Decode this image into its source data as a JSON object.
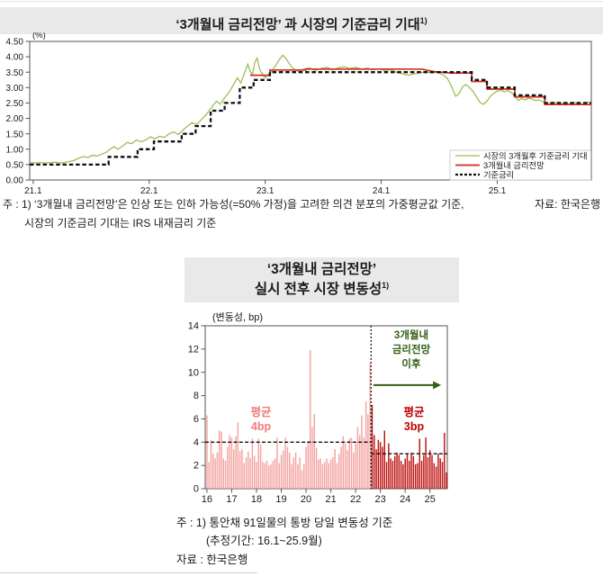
{
  "page": {
    "top_header": {
      "title": "‘3개월내 금리전망’ 과 시장의 기준금리 기대",
      "sup": "1)"
    },
    "top_footnote": {
      "line1": "주 : 1) ‘3개월내 금리전망’은 인상 또는 인하 가능성(=50% 가정)을 고려한 의견 분포의 가중평균값 기준,",
      "line2": "시장의 기준금리 기대는 IRS 내재금리 기준",
      "source": "자료: 한국은행"
    },
    "bottom_header": {
      "title_line1": "‘3개월내 금리전망’",
      "title_line2": "실시 전후 시장 변동성",
      "sup": "1)"
    },
    "bottom_footnote": {
      "line1": "주 : 1) 통안채 91일물의 통방 당일 변동성 기준",
      "line2": "(추정기간: 16.1~25.9월)",
      "source": "자료 : 한국은행"
    }
  },
  "chart_data": [
    {
      "type": "line",
      "title": "‘3개월내 금리전망’ 과 시장의 기준금리 기대1)",
      "unit_label": "(%)",
      "xlim": [
        20.97,
        25.81
      ],
      "ylim": [
        0,
        4.5
      ],
      "grid": false,
      "legend_position": "bottom-right",
      "y_tick_values": [
        0,
        0.5,
        1.0,
        1.5,
        2.0,
        2.5,
        3.0,
        3.5,
        4.0,
        4.5
      ],
      "y_tick_labels": [
        "0.00",
        "0.50",
        "1.00",
        "1.50",
        "2.00",
        "2.50",
        "3.00",
        "3.50",
        "4.00",
        "4.50"
      ],
      "x_tick_values": [
        21,
        22,
        23,
        24,
        25
      ],
      "x_tick_labels": [
        "21.1",
        "22.1",
        "23.1",
        "24.1",
        "25.1"
      ],
      "series": [
        {
          "name": "시장의 3개월후 기준금리 기대",
          "color": "#9cbe57",
          "dash": null,
          "width": 1.3,
          "points": [
            [
              20.97,
              0.56
            ],
            [
              21.02,
              0.55
            ],
            [
              21.06,
              0.57
            ],
            [
              21.1,
              0.55
            ],
            [
              21.15,
              0.56
            ],
            [
              21.19,
              0.58
            ],
            [
              21.23,
              0.55
            ],
            [
              21.27,
              0.57
            ],
            [
              21.31,
              0.6
            ],
            [
              21.35,
              0.63
            ],
            [
              21.39,
              0.7
            ],
            [
              21.43,
              0.76
            ],
            [
              21.47,
              0.73
            ],
            [
              21.51,
              0.8
            ],
            [
              21.55,
              0.78
            ],
            [
              21.59,
              0.84
            ],
            [
              21.63,
              0.9
            ],
            [
              21.67,
              1.02
            ],
            [
              21.7,
              1.08
            ],
            [
              21.73,
              1.0
            ],
            [
              21.77,
              1.1
            ],
            [
              21.81,
              1.22
            ],
            [
              21.85,
              1.18
            ],
            [
              21.89,
              1.3
            ],
            [
              21.93,
              1.24
            ],
            [
              21.97,
              1.3
            ],
            [
              22.01,
              1.4
            ],
            [
              22.05,
              1.34
            ],
            [
              22.09,
              1.42
            ],
            [
              22.13,
              1.38
            ],
            [
              22.17,
              1.5
            ],
            [
              22.21,
              1.56
            ],
            [
              22.25,
              1.48
            ],
            [
              22.29,
              1.62
            ],
            [
              22.33,
              1.75
            ],
            [
              22.37,
              1.86
            ],
            [
              22.41,
              1.8
            ],
            [
              22.45,
              1.96
            ],
            [
              22.49,
              2.12
            ],
            [
              22.52,
              2.26
            ],
            [
              22.55,
              2.42
            ],
            [
              22.58,
              2.56
            ],
            [
              22.61,
              2.46
            ],
            [
              22.64,
              2.62
            ],
            [
              22.67,
              2.76
            ],
            [
              22.7,
              2.92
            ],
            [
              22.73,
              3.12
            ],
            [
              22.76,
              3.32
            ],
            [
              22.79,
              3.15
            ],
            [
              22.82,
              3.46
            ],
            [
              22.85,
              3.76
            ],
            [
              22.87,
              3.52
            ],
            [
              22.89,
              3.42
            ],
            [
              22.91,
              3.82
            ],
            [
              22.93,
              3.96
            ],
            [
              22.95,
              3.62
            ],
            [
              22.97,
              3.46
            ],
            [
              23.0,
              3.32
            ],
            [
              23.03,
              3.42
            ],
            [
              23.06,
              3.56
            ],
            [
              23.09,
              3.72
            ],
            [
              23.12,
              3.9
            ],
            [
              23.15,
              4.05
            ],
            [
              23.18,
              3.94
            ],
            [
              23.21,
              3.76
            ],
            [
              23.24,
              3.62
            ],
            [
              23.28,
              3.54
            ],
            [
              23.33,
              3.6
            ],
            [
              23.38,
              3.64
            ],
            [
              23.43,
              3.56
            ],
            [
              23.48,
              3.62
            ],
            [
              23.53,
              3.66
            ],
            [
              23.58,
              3.58
            ],
            [
              23.63,
              3.64
            ],
            [
              23.68,
              3.68
            ],
            [
              23.73,
              3.62
            ],
            [
              23.78,
              3.66
            ],
            [
              23.83,
              3.6
            ],
            [
              23.88,
              3.63
            ],
            [
              23.93,
              3.58
            ],
            [
              23.98,
              3.61
            ],
            [
              24.03,
              3.56
            ],
            [
              24.08,
              3.58
            ],
            [
              24.13,
              3.5
            ],
            [
              24.18,
              3.45
            ],
            [
              24.23,
              3.4
            ],
            [
              24.28,
              3.44
            ],
            [
              24.33,
              3.48
            ],
            [
              24.38,
              3.5
            ],
            [
              24.43,
              3.48
            ],
            [
              24.48,
              3.5
            ],
            [
              24.53,
              3.42
            ],
            [
              24.57,
              3.3
            ],
            [
              24.61,
              3.0
            ],
            [
              24.64,
              2.72
            ],
            [
              24.67,
              2.8
            ],
            [
              24.7,
              3.02
            ],
            [
              24.73,
              3.1
            ],
            [
              24.76,
              3.0
            ],
            [
              24.79,
              2.88
            ],
            [
              24.82,
              2.7
            ],
            [
              24.85,
              2.52
            ],
            [
              24.88,
              2.46
            ],
            [
              24.91,
              2.55
            ],
            [
              24.94,
              2.72
            ],
            [
              24.97,
              2.82
            ],
            [
              25.0,
              2.88
            ],
            [
              25.03,
              2.92
            ],
            [
              25.06,
              2.86
            ],
            [
              25.09,
              2.9
            ],
            [
              25.12,
              2.84
            ],
            [
              25.15,
              2.72
            ],
            [
              25.18,
              2.58
            ],
            [
              25.21,
              2.65
            ],
            [
              25.24,
              2.6
            ],
            [
              25.27,
              2.66
            ],
            [
              25.3,
              2.62
            ],
            [
              25.33,
              2.58
            ],
            [
              25.36,
              2.6
            ],
            [
              25.39,
              2.55
            ],
            [
              25.42,
              2.5
            ],
            [
              25.46,
              2.47
            ],
            [
              25.5,
              2.52
            ],
            [
              25.54,
              2.46
            ],
            [
              25.58,
              2.5
            ],
            [
              25.62,
              2.47
            ],
            [
              25.66,
              2.52
            ],
            [
              25.7,
              2.48
            ],
            [
              25.74,
              2.46
            ],
            [
              25.78,
              2.53
            ],
            [
              25.81,
              2.5
            ]
          ]
        },
        {
          "name": "3개월내 금리전망",
          "color": "#cf2e21",
          "dash": null,
          "width": 1.7,
          "points": [
            [
              22.87,
              3.4
            ],
            [
              23.04,
              3.4
            ],
            [
              23.04,
              3.57
            ],
            [
              23.35,
              3.57
            ],
            [
              23.35,
              3.6
            ],
            [
              24.35,
              3.6
            ],
            [
              24.45,
              3.52
            ],
            [
              24.6,
              3.47
            ],
            [
              24.78,
              3.47
            ],
            [
              24.78,
              3.2
            ],
            [
              24.91,
              3.2
            ],
            [
              24.91,
              2.95
            ],
            [
              25.15,
              2.95
            ],
            [
              25.15,
              2.7
            ],
            [
              25.41,
              2.7
            ],
            [
              25.41,
              2.45
            ],
            [
              25.81,
              2.45
            ]
          ]
        },
        {
          "name": "기준금리",
          "color": "#111111",
          "dash": "4.5,2.8",
          "width": 2.3,
          "points": [
            [
              20.97,
              0.5
            ],
            [
              21.65,
              0.5
            ],
            [
              21.65,
              0.75
            ],
            [
              21.9,
              0.75
            ],
            [
              21.9,
              1.0
            ],
            [
              22.04,
              1.0
            ],
            [
              22.04,
              1.25
            ],
            [
              22.28,
              1.25
            ],
            [
              22.28,
              1.5
            ],
            [
              22.4,
              1.5
            ],
            [
              22.4,
              1.75
            ],
            [
              22.53,
              1.75
            ],
            [
              22.53,
              2.25
            ],
            [
              22.65,
              2.25
            ],
            [
              22.65,
              2.5
            ],
            [
              22.78,
              2.5
            ],
            [
              22.78,
              3.0
            ],
            [
              22.9,
              3.0
            ],
            [
              22.9,
              3.25
            ],
            [
              23.04,
              3.25
            ],
            [
              23.04,
              3.5
            ],
            [
              24.78,
              3.5
            ],
            [
              24.78,
              3.25
            ],
            [
              24.91,
              3.25
            ],
            [
              24.91,
              3.0
            ],
            [
              25.15,
              3.0
            ],
            [
              25.15,
              2.75
            ],
            [
              25.41,
              2.75
            ],
            [
              25.41,
              2.5
            ],
            [
              25.81,
              2.5
            ]
          ]
        }
      ]
    },
    {
      "type": "bar",
      "title": "‘3개월내 금리전망’ 실시 전후 시장 변동성1)",
      "unit_label": "(변동성,  bp)",
      "xlim": [
        15.93,
        25.7
      ],
      "ylim": [
        0,
        14
      ],
      "grid": false,
      "y_tick_values": [
        0,
        2,
        4,
        6,
        8,
        10,
        12,
        14
      ],
      "y_tick_labels": [
        "0",
        "2",
        "4",
        "6",
        "8",
        "10",
        "12",
        "14"
      ],
      "x_tick_values": [
        16,
        17,
        18,
        19,
        20,
        21,
        22,
        23,
        24,
        25
      ],
      "x_tick_labels": [
        "16",
        "17",
        "18",
        "19",
        "20",
        "21",
        "22",
        "23",
        "24",
        "25"
      ],
      "bar_start_x": 16.0,
      "bar_interval_years": 0.08333,
      "divider_index": 80,
      "divider_x": 22.625,
      "color_before": "#f4a3a1",
      "color_after": "#bf1212",
      "values": [
        6.3,
        2.3,
        4.2,
        3.0,
        2.6,
        3.1,
        5.0,
        4.9,
        2.6,
        2.4,
        3.6,
        4.6,
        4.4,
        3.4,
        4.5,
        5.7,
        3.2,
        3.4,
        2.2,
        2.7,
        3.2,
        2.6,
        4.3,
        2.8,
        2.3,
        4.3,
        3.8,
        2.3,
        2.2,
        2.4,
        2.0,
        2.1,
        2.4,
        2.6,
        4.4,
        2.2,
        2.9,
        3.3,
        4.4,
        3.6,
        3.1,
        2.1,
        2.7,
        3.1,
        2.1,
        2.7,
        1.6,
        2.1,
        3.6,
        4.1,
        11.9,
        5.3,
        6.4,
        3.5,
        2.5,
        2.6,
        2.1,
        2.3,
        2.6,
        2.2,
        2.5,
        2.7,
        3.4,
        2.2,
        3.0,
        3.6,
        4.5,
        3.9,
        3.3,
        4.3,
        4.4,
        3.1,
        3.9,
        5.3,
        4.6,
        6.3,
        4.4,
        7.5,
        6.4,
        10.8,
        7.2,
        4.6,
        3.4,
        4.2,
        4.0,
        3.6,
        5.0,
        2.3,
        3.9,
        2.6,
        2.4,
        2.8,
        3.1,
        2.9,
        2.4,
        2.1,
        2.6,
        3.0,
        2.4,
        3.1,
        2.8,
        2.1,
        2.2,
        4.3,
        2.4,
        2.9,
        4.4,
        2.7,
        3.3,
        2.9,
        2.2,
        1.9,
        3.0,
        2.6,
        2.3,
        4.8,
        1.4
      ],
      "avg_lines": [
        {
          "y": 4,
          "x1": 15.93,
          "x2": 22.625,
          "label": "평균 4bp"
        },
        {
          "y": 3,
          "x1": 22.625,
          "x2": 25.7,
          "label": "평균 3bp"
        }
      ],
      "arrow": {
        "x1": 22.72,
        "x2": 25.45,
        "y": 8.9,
        "color": "#336018"
      },
      "annotations": [
        {
          "id": "after-note",
          "text": "3개월내\n금리전망\n이후",
          "color": "#336018"
        },
        {
          "id": "avg-before",
          "text": "평균\n4bp",
          "color": "#ee7c7a"
        },
        {
          "id": "avg-after",
          "text": "평균\n3bp",
          "color": "#c00000"
        }
      ]
    }
  ]
}
